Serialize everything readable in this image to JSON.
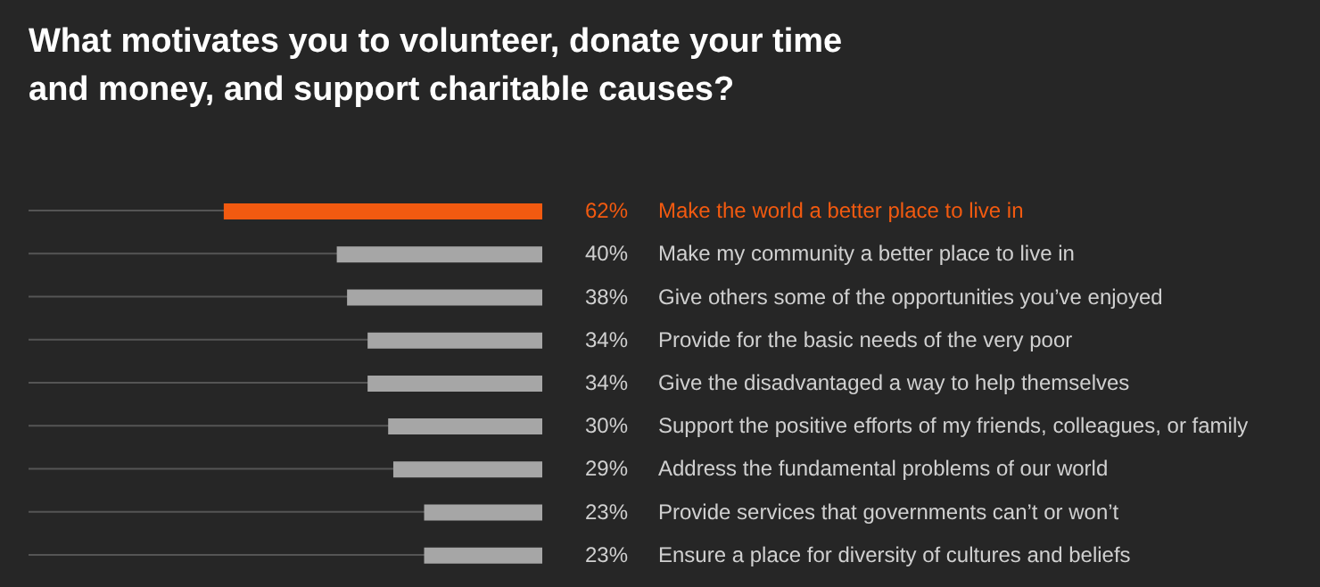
{
  "chart_data": {
    "type": "bar",
    "orientation": "horizontal",
    "title": "What motivates you to volunteer, donate your time\nand money, and support charitable causes?",
    "categories": [
      "Make the world a better place to live in",
      "Make my community a better place to live in",
      "Give others some of the opportunities you’ve enjoyed",
      "Provide for the basic needs of the very poor",
      "Give the disadvantaged a way to help themselves",
      "Support the positive efforts of my friends, colleagues, or family",
      "Address the fundamental problems of our world",
      "Provide services that governments can’t or won’t",
      "Ensure a place for diversity of cultures and beliefs"
    ],
    "values": [
      62,
      40,
      38,
      34,
      34,
      30,
      29,
      23,
      23
    ],
    "colors": [
      "#f25a10",
      "#a6a6a6",
      "#a6a6a6",
      "#a6a6a6",
      "#a6a6a6",
      "#a6a6a6",
      "#a6a6a6",
      "#a6a6a6",
      "#a6a6a6"
    ],
    "value_labels": [
      "62%",
      "40%",
      "38%",
      "34%",
      "34%",
      "30%",
      "29%",
      "23%",
      "23%"
    ],
    "xlim": [
      100,
      0
    ],
    "grid": "y",
    "tick_labels": "y"
  }
}
